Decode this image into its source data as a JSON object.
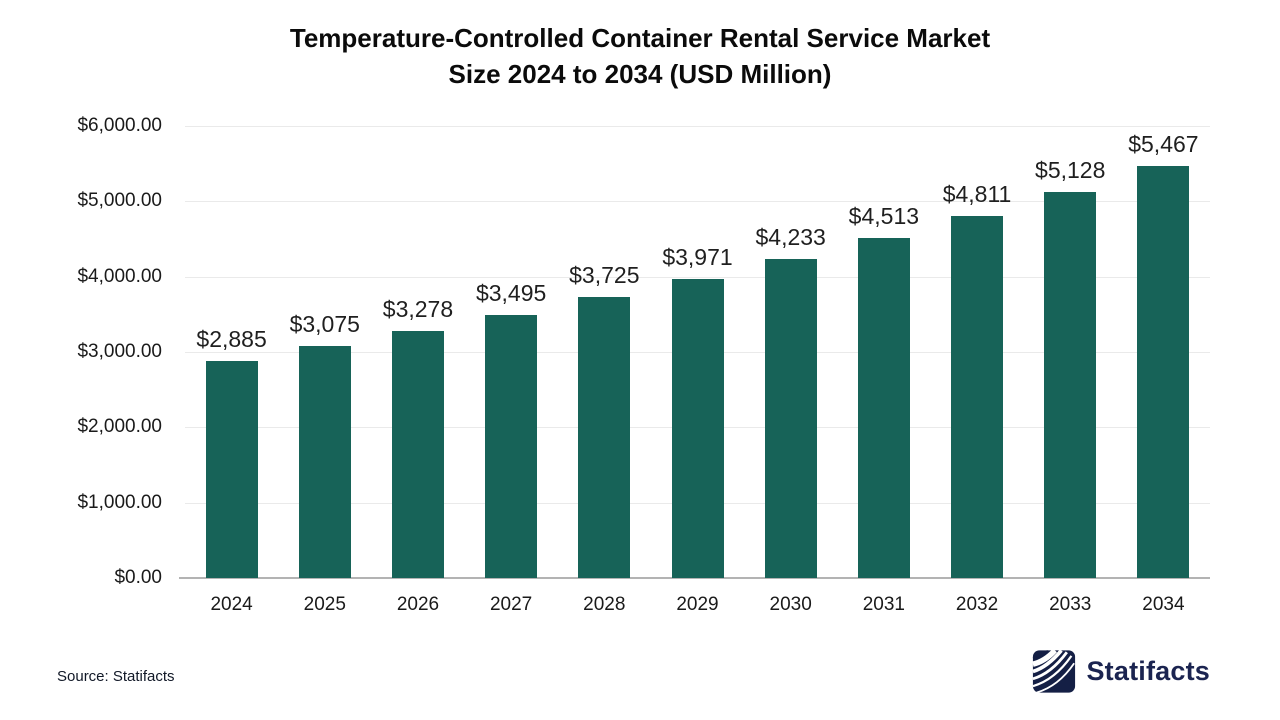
{
  "title": {
    "line1": "Temperature-Controlled Container Rental Service Market",
    "line2": "Size 2024 to 2034 (USD Million)"
  },
  "source": {
    "text": "Source: Statifacts"
  },
  "brand": {
    "name": "Statifacts",
    "icon": "statifacts-waves-icon",
    "color": "#1b2450",
    "icon_color": "#141f45"
  },
  "chart_data": {
    "type": "bar",
    "title": "Temperature-Controlled Container Rental Service Market Size 2024 to 2034 (USD Million)",
    "unit": "USD Million",
    "categories": [
      "2024",
      "2025",
      "2026",
      "2027",
      "2028",
      "2029",
      "2030",
      "2031",
      "2032",
      "2033",
      "2034"
    ],
    "values": [
      2885,
      3075,
      3278,
      3495,
      3725,
      3971,
      4233,
      4513,
      4811,
      5128,
      5467
    ],
    "value_labels": [
      "$2,885",
      "$3,075",
      "$3,278",
      "$3,495",
      "$3,725",
      "$3,971",
      "$4,233",
      "$4,513",
      "$4,811",
      "$5,128",
      "$5,467"
    ],
    "xlabel": "",
    "ylabel": "",
    "ylim": [
      0,
      6000
    ],
    "y_ticks": [
      {
        "value": 0,
        "label": "$0.00"
      },
      {
        "value": 1000,
        "label": "$1,000.00"
      },
      {
        "value": 2000,
        "label": "$2,000.00"
      },
      {
        "value": 3000,
        "label": "$3,000.00"
      },
      {
        "value": 4000,
        "label": "$4,000.00"
      },
      {
        "value": 5000,
        "label": "$5,000.00"
      },
      {
        "value": 6000,
        "label": "$6,000.00"
      }
    ],
    "grid": true,
    "legend": false,
    "bar_color": "#176358",
    "gridline_color": "#eaeaea",
    "baseline_color": "#b3b3b3"
  }
}
